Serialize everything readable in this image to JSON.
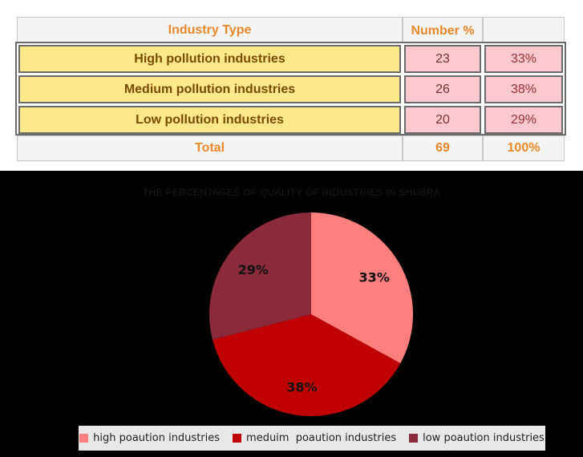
{
  "table": {
    "headers": {
      "industry": "Industry Type",
      "number": "Number %",
      "percent": ""
    },
    "rows": [
      {
        "name": "High pollution industries",
        "number": "23",
        "percent": "33%"
      },
      {
        "name": "Medium pollution industries",
        "number": "26",
        "percent": "38%"
      },
      {
        "name": "Low pollution industries",
        "number": "20",
        "percent": "29%"
      }
    ],
    "total": {
      "label": "Total",
      "number": "69",
      "percent": "100%"
    }
  },
  "colors": {
    "high": "#ff7f7f",
    "medium": "#c00000",
    "low": "#8b2a3a"
  },
  "chart_data": {
    "type": "pie",
    "title": "THE PERCENTAGES OF QUALITY OF INDUSTRIES IN SHUBRA",
    "labels": [
      "high poaution industries",
      "meduim  poaution industries",
      "low poaution industries"
    ],
    "values": [
      33,
      38,
      29
    ],
    "data_labels": [
      "33%",
      "38%",
      "29%"
    ],
    "legend": "bottom"
  }
}
